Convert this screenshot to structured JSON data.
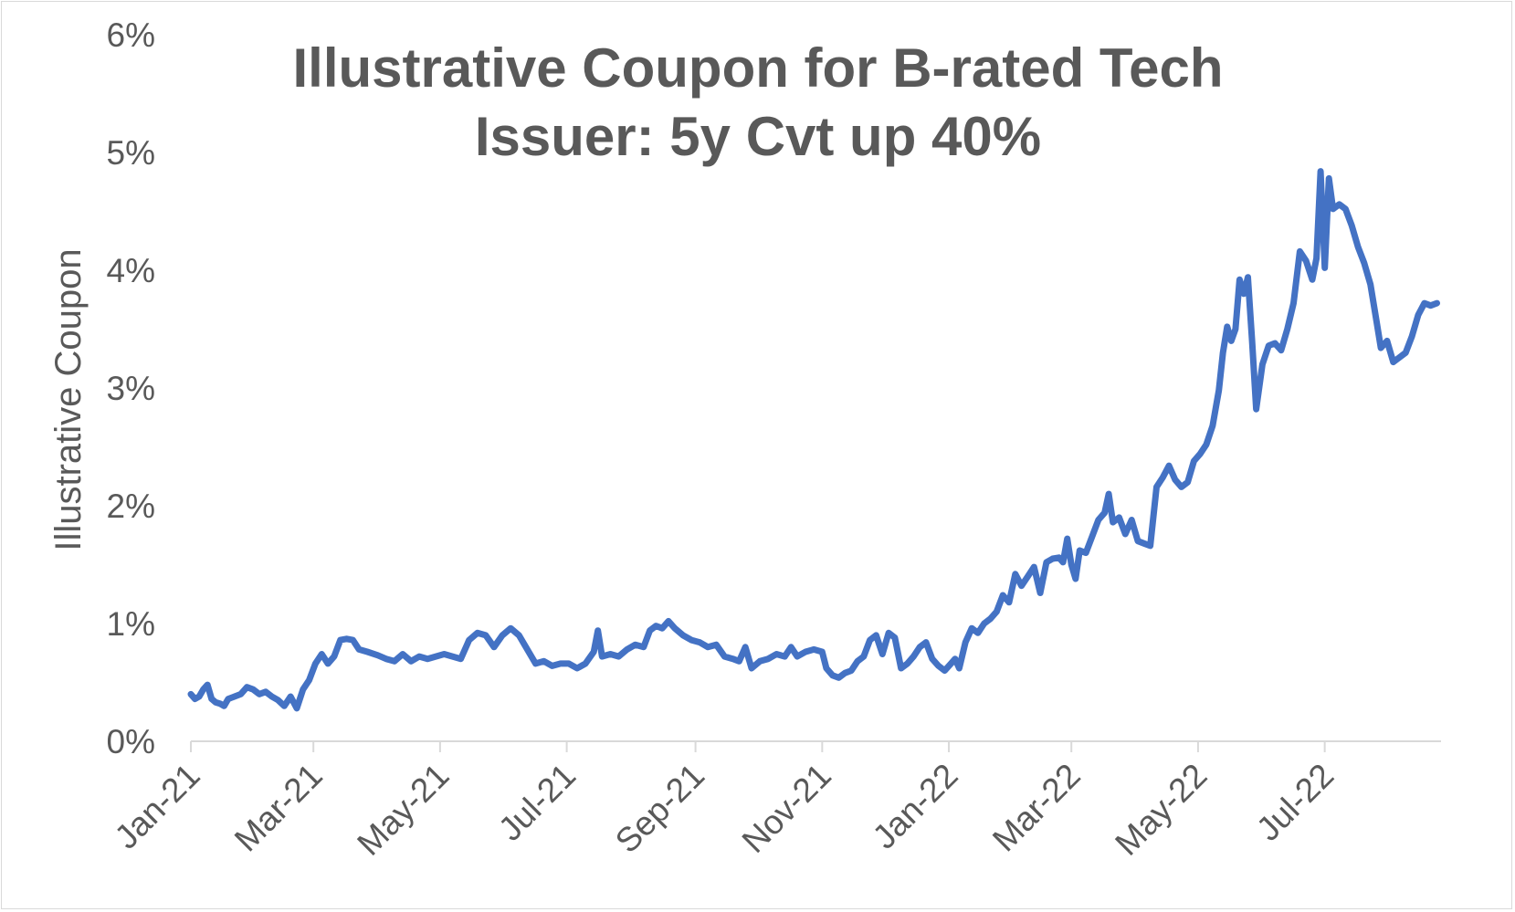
{
  "chart_data": {
    "type": "line",
    "title_lines": [
      "Illustrative Coupon for B-rated Tech",
      "Issuer: 5y Cvt up 40%"
    ],
    "xlabel": "",
    "ylabel": "Illustrative Coupon",
    "ylim": [
      0,
      6
    ],
    "yticks": [
      0,
      1,
      2,
      3,
      4,
      5,
      6
    ],
    "ytick_labels": [
      "0%",
      "1%",
      "2%",
      "3%",
      "4%",
      "5%",
      "6%"
    ],
    "xlim": [
      "2021-01-01",
      "2022-08-26"
    ],
    "xticks": [
      "2021-01-01",
      "2021-03-01",
      "2021-05-01",
      "2021-07-01",
      "2021-09-01",
      "2021-11-01",
      "2022-01-01",
      "2022-03-01",
      "2022-05-01",
      "2022-07-01"
    ],
    "xtick_labels": [
      "Jan-21",
      "Mar-21",
      "May-21",
      "Jul-21",
      "Sep-21",
      "Nov-21",
      "Jan-22",
      "Mar-22",
      "May-22",
      "Jul-22"
    ],
    "grid": false,
    "legend": "none",
    "line_color": "#4472C4",
    "series": [
      {
        "points": [
          [
            "2021-01-01",
            0.4
          ],
          [
            "2021-01-03",
            0.36
          ],
          [
            "2021-01-05",
            0.38
          ],
          [
            "2021-01-07",
            0.44
          ],
          [
            "2021-01-09",
            0.48
          ],
          [
            "2021-01-11",
            0.36
          ],
          [
            "2021-01-13",
            0.33
          ],
          [
            "2021-01-15",
            0.32
          ],
          [
            "2021-01-17",
            0.3
          ],
          [
            "2021-01-19",
            0.36
          ],
          [
            "2021-01-22",
            0.38
          ],
          [
            "2021-01-25",
            0.4
          ],
          [
            "2021-01-28",
            0.46
          ],
          [
            "2021-01-31",
            0.44
          ],
          [
            "2021-02-03",
            0.4
          ],
          [
            "2021-02-06",
            0.42
          ],
          [
            "2021-02-09",
            0.38
          ],
          [
            "2021-02-12",
            0.35
          ],
          [
            "2021-02-15",
            0.3
          ],
          [
            "2021-02-18",
            0.38
          ],
          [
            "2021-02-21",
            0.28
          ],
          [
            "2021-02-24",
            0.44
          ],
          [
            "2021-02-27",
            0.52
          ],
          [
            "2021-03-02",
            0.66
          ],
          [
            "2021-03-05",
            0.74
          ],
          [
            "2021-03-08",
            0.66
          ],
          [
            "2021-03-11",
            0.72
          ],
          [
            "2021-03-14",
            0.86
          ],
          [
            "2021-03-17",
            0.87
          ],
          [
            "2021-03-20",
            0.86
          ],
          [
            "2021-03-23",
            0.78
          ],
          [
            "2021-03-27",
            0.76
          ],
          [
            "2021-04-01",
            0.73
          ],
          [
            "2021-04-05",
            0.7
          ],
          [
            "2021-04-09",
            0.68
          ],
          [
            "2021-04-13",
            0.74
          ],
          [
            "2021-04-17",
            0.68
          ],
          [
            "2021-04-21",
            0.72
          ],
          [
            "2021-04-25",
            0.7
          ],
          [
            "2021-04-29",
            0.72
          ],
          [
            "2021-05-03",
            0.74
          ],
          [
            "2021-05-07",
            0.72
          ],
          [
            "2021-05-11",
            0.7
          ],
          [
            "2021-05-15",
            0.86
          ],
          [
            "2021-05-19",
            0.92
          ],
          [
            "2021-05-23",
            0.9
          ],
          [
            "2021-05-27",
            0.8
          ],
          [
            "2021-05-31",
            0.9
          ],
          [
            "2021-06-04",
            0.96
          ],
          [
            "2021-06-08",
            0.9
          ],
          [
            "2021-06-12",
            0.78
          ],
          [
            "2021-06-16",
            0.66
          ],
          [
            "2021-06-20",
            0.68
          ],
          [
            "2021-06-24",
            0.64
          ],
          [
            "2021-06-28",
            0.66
          ],
          [
            "2021-07-02",
            0.66
          ],
          [
            "2021-07-06",
            0.62
          ],
          [
            "2021-07-10",
            0.66
          ],
          [
            "2021-07-14",
            0.76
          ],
          [
            "2021-07-16",
            0.94
          ],
          [
            "2021-07-18",
            0.72
          ],
          [
            "2021-07-22",
            0.74
          ],
          [
            "2021-07-26",
            0.72
          ],
          [
            "2021-07-30",
            0.78
          ],
          [
            "2021-08-03",
            0.82
          ],
          [
            "2021-08-07",
            0.8
          ],
          [
            "2021-08-10",
            0.94
          ],
          [
            "2021-08-13",
            0.98
          ],
          [
            "2021-08-16",
            0.96
          ],
          [
            "2021-08-19",
            1.02
          ],
          [
            "2021-08-22",
            0.96
          ],
          [
            "2021-08-26",
            0.9
          ],
          [
            "2021-08-30",
            0.86
          ],
          [
            "2021-09-03",
            0.84
          ],
          [
            "2021-09-07",
            0.8
          ],
          [
            "2021-09-11",
            0.82
          ],
          [
            "2021-09-15",
            0.72
          ],
          [
            "2021-09-19",
            0.7
          ],
          [
            "2021-09-22",
            0.68
          ],
          [
            "2021-09-25",
            0.8
          ],
          [
            "2021-09-28",
            0.62
          ],
          [
            "2021-10-02",
            0.68
          ],
          [
            "2021-10-06",
            0.7
          ],
          [
            "2021-10-10",
            0.74
          ],
          [
            "2021-10-14",
            0.72
          ],
          [
            "2021-10-17",
            0.8
          ],
          [
            "2021-10-20",
            0.72
          ],
          [
            "2021-10-24",
            0.76
          ],
          [
            "2021-10-28",
            0.78
          ],
          [
            "2021-11-01",
            0.76
          ],
          [
            "2021-11-03",
            0.62
          ],
          [
            "2021-11-06",
            0.56
          ],
          [
            "2021-11-09",
            0.54
          ],
          [
            "2021-11-12",
            0.58
          ],
          [
            "2021-11-15",
            0.6
          ],
          [
            "2021-11-18",
            0.68
          ],
          [
            "2021-11-21",
            0.72
          ],
          [
            "2021-11-24",
            0.86
          ],
          [
            "2021-11-27",
            0.9
          ],
          [
            "2021-11-30",
            0.74
          ],
          [
            "2021-12-03",
            0.92
          ],
          [
            "2021-12-06",
            0.88
          ],
          [
            "2021-12-09",
            0.62
          ],
          [
            "2021-12-12",
            0.66
          ],
          [
            "2021-12-15",
            0.72
          ],
          [
            "2021-12-18",
            0.8
          ],
          [
            "2021-12-21",
            0.84
          ],
          [
            "2021-12-24",
            0.7
          ],
          [
            "2021-12-27",
            0.64
          ],
          [
            "2021-12-30",
            0.6
          ],
          [
            "2022-01-02",
            0.66
          ],
          [
            "2022-01-04",
            0.7
          ],
          [
            "2022-01-06",
            0.62
          ],
          [
            "2022-01-09",
            0.84
          ],
          [
            "2022-01-12",
            0.96
          ],
          [
            "2022-01-15",
            0.92
          ],
          [
            "2022-01-18",
            1.0
          ],
          [
            "2022-01-21",
            1.04
          ],
          [
            "2022-01-24",
            1.1
          ],
          [
            "2022-01-27",
            1.24
          ],
          [
            "2022-01-30",
            1.18
          ],
          [
            "2022-02-02",
            1.42
          ],
          [
            "2022-02-05",
            1.32
          ],
          [
            "2022-02-08",
            1.4
          ],
          [
            "2022-02-11",
            1.48
          ],
          [
            "2022-02-14",
            1.26
          ],
          [
            "2022-02-17",
            1.52
          ],
          [
            "2022-02-20",
            1.55
          ],
          [
            "2022-02-23",
            1.56
          ],
          [
            "2022-02-25",
            1.52
          ],
          [
            "2022-02-27",
            1.72
          ],
          [
            "2022-03-01",
            1.5
          ],
          [
            "2022-03-03",
            1.38
          ],
          [
            "2022-03-05",
            1.62
          ],
          [
            "2022-03-08",
            1.6
          ],
          [
            "2022-03-11",
            1.74
          ],
          [
            "2022-03-14",
            1.88
          ],
          [
            "2022-03-17",
            1.94
          ],
          [
            "2022-03-19",
            2.1
          ],
          [
            "2022-03-21",
            1.86
          ],
          [
            "2022-03-24",
            1.9
          ],
          [
            "2022-03-27",
            1.76
          ],
          [
            "2022-03-30",
            1.88
          ],
          [
            "2022-04-02",
            1.7
          ],
          [
            "2022-04-05",
            1.68
          ],
          [
            "2022-04-08",
            1.66
          ],
          [
            "2022-04-11",
            2.16
          ],
          [
            "2022-04-14",
            2.24
          ],
          [
            "2022-04-17",
            2.34
          ],
          [
            "2022-04-20",
            2.22
          ],
          [
            "2022-04-23",
            2.16
          ],
          [
            "2022-04-26",
            2.2
          ],
          [
            "2022-04-29",
            2.38
          ],
          [
            "2022-05-02",
            2.44
          ],
          [
            "2022-05-05",
            2.52
          ],
          [
            "2022-05-08",
            2.68
          ],
          [
            "2022-05-11",
            2.98
          ],
          [
            "2022-05-13",
            3.3
          ],
          [
            "2022-05-15",
            3.52
          ],
          [
            "2022-05-17",
            3.4
          ],
          [
            "2022-05-19",
            3.5
          ],
          [
            "2022-05-21",
            3.92
          ],
          [
            "2022-05-23",
            3.8
          ],
          [
            "2022-05-25",
            3.94
          ],
          [
            "2022-05-27",
            3.4
          ],
          [
            "2022-05-29",
            2.82
          ],
          [
            "2022-06-01",
            3.2
          ],
          [
            "2022-06-04",
            3.36
          ],
          [
            "2022-06-07",
            3.38
          ],
          [
            "2022-06-10",
            3.32
          ],
          [
            "2022-06-13",
            3.5
          ],
          [
            "2022-06-16",
            3.72
          ],
          [
            "2022-06-19",
            4.16
          ],
          [
            "2022-06-22",
            4.08
          ],
          [
            "2022-06-25",
            3.92
          ],
          [
            "2022-06-27",
            4.1
          ],
          [
            "2022-06-29",
            4.84
          ],
          [
            "2022-07-01",
            4.02
          ],
          [
            "2022-07-03",
            4.78
          ],
          [
            "2022-07-05",
            4.52
          ],
          [
            "2022-07-08",
            4.56
          ],
          [
            "2022-07-11",
            4.52
          ],
          [
            "2022-07-14",
            4.38
          ],
          [
            "2022-07-17",
            4.2
          ],
          [
            "2022-07-20",
            4.06
          ],
          [
            "2022-07-23",
            3.88
          ],
          [
            "2022-07-26",
            3.56
          ],
          [
            "2022-07-28",
            3.34
          ],
          [
            "2022-07-31",
            3.4
          ],
          [
            "2022-08-03",
            3.22
          ],
          [
            "2022-08-06",
            3.26
          ],
          [
            "2022-08-09",
            3.3
          ],
          [
            "2022-08-12",
            3.44
          ],
          [
            "2022-08-15",
            3.62
          ],
          [
            "2022-08-18",
            3.72
          ],
          [
            "2022-08-21",
            3.7
          ],
          [
            "2022-08-24",
            3.72
          ]
        ]
      }
    ]
  }
}
